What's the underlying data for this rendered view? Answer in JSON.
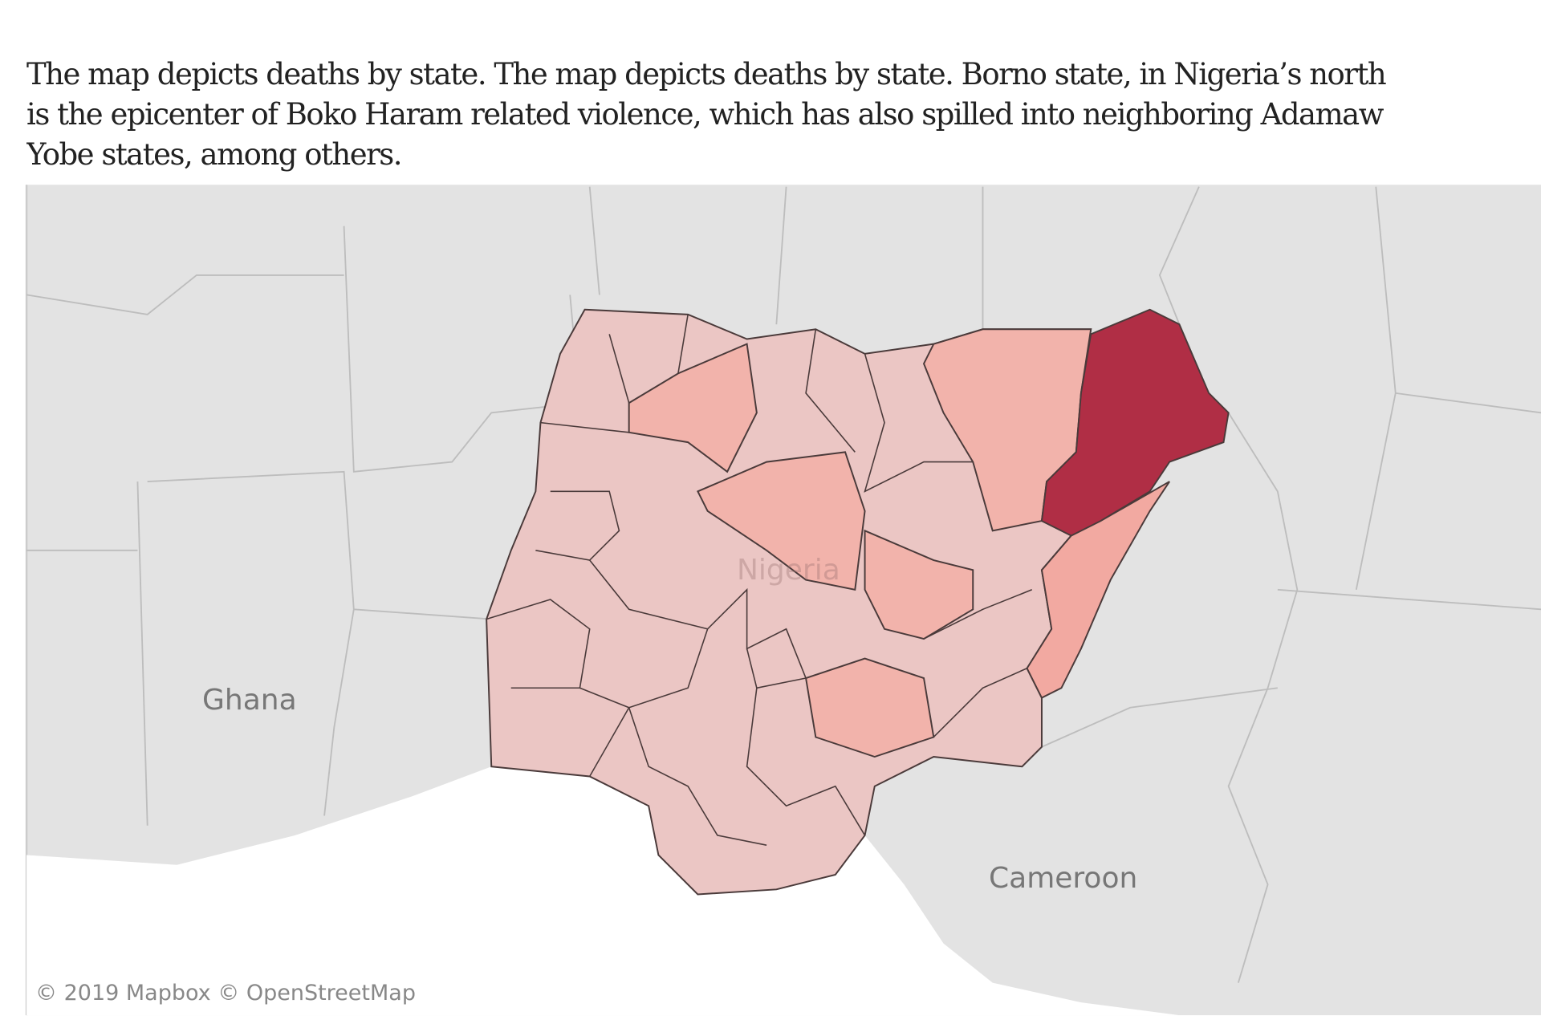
{
  "caption": {
    "lines": [
      "The map depicts deaths by state. The map depicts deaths by state. Borno state, in Nigeria’s north",
      "is the epicenter of Boko Haram related violence, which has also spilled into neighboring Adamaw",
      "Yobe states, among others."
    ]
  },
  "map": {
    "labels": {
      "ghana": "Ghana",
      "cameroon": "Cameroon",
      "nigeria": "Nigeria"
    },
    "attribution": "© 2019 Mapbox  © OpenStreetMap",
    "colors": {
      "land": "#e3e3e3",
      "water": "#ffffff",
      "low": "#ebc6c4",
      "medium": "#f2a9a1",
      "high": "#b02e45"
    },
    "highlighted_states": {
      "highest": "Borno",
      "medium": [
        "Adamawa",
        "Yobe"
      ]
    }
  }
}
